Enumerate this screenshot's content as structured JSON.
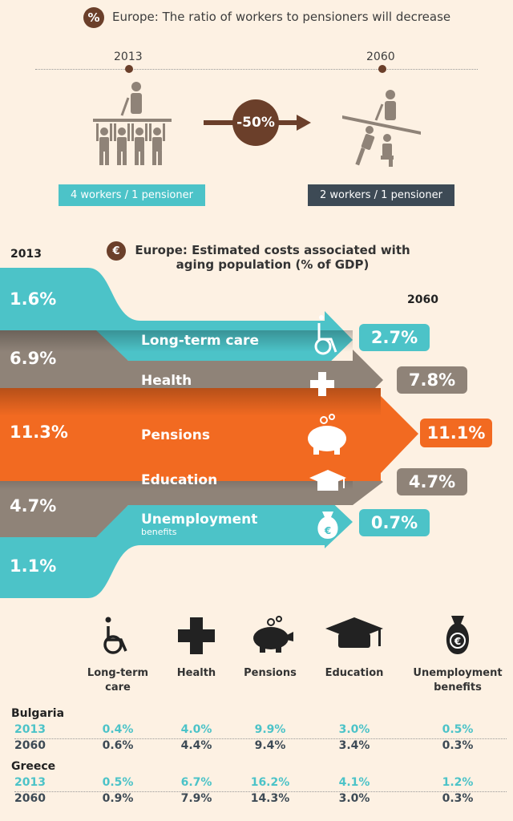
{
  "ratio_section": {
    "title": "Europe: The ratio of workers to pensioners will decrease",
    "year_from": "2013",
    "year_to": "2060",
    "change": "-50%",
    "from_label": "4 workers / 1 pensioner",
    "to_label": "2 workers / 1 pensioner"
  },
  "costs_section": {
    "year_left": "2013",
    "title_line1": "Europe: Estimated costs associated with",
    "title_line2": "aging population (% of GDP)",
    "year_right": "2060"
  },
  "chart_data": [
    {
      "type": "bar",
      "title": "Europe: Estimated costs associated with aging population (% of GDP)",
      "categories": [
        "Long-term care",
        "Health",
        "Pensions",
        "Education",
        "Unemployment benefits"
      ],
      "series": [
        {
          "name": "2013",
          "values": [
            1.6,
            6.9,
            11.3,
            4.7,
            1.1
          ],
          "labels": [
            "1.6%",
            "6.9%",
            "11.3%",
            "4.7%",
            "1.1%"
          ]
        },
        {
          "name": "2060",
          "values": [
            2.7,
            7.8,
            11.1,
            4.7,
            0.7
          ],
          "labels": [
            "2.7%",
            "7.8%",
            "11.1%",
            "4.7%",
            "0.7%"
          ]
        }
      ],
      "category_labels": {
        "long_term_care": "Long-term care",
        "health": "Health",
        "pensions": "Pensions",
        "education": "Education",
        "unemployment": "Unemployment",
        "unemployment_sub": "benefits"
      },
      "colors": {
        "teal": "#4cc3c8",
        "brown": "#8f8378",
        "orange": "#f26a21"
      }
    },
    {
      "type": "table",
      "columns": [
        "Long-term care",
        "Health",
        "Pensions",
        "Education",
        "Unemployment benefits"
      ],
      "column_labels": [
        [
          "Long-term",
          "care"
        ],
        [
          "Health"
        ],
        [
          "Pensions"
        ],
        [
          "Education"
        ],
        [
          "Unemployment",
          "benefits"
        ]
      ],
      "rows": [
        {
          "country": "Bulgaria",
          "year_a": "2013",
          "values_a": [
            "0.4%",
            "4.0%",
            "9.9%",
            "3.0%",
            "0.5%"
          ],
          "year_b": "2060",
          "values_b": [
            "0.6%",
            "4.4%",
            "9.4%",
            "3.4%",
            "0.3%"
          ]
        },
        {
          "country": "Greece",
          "year_a": "2013",
          "values_a": [
            "0.5%",
            "6.7%",
            "16.2%",
            "4.1%",
            "1.2%"
          ],
          "year_b": "2060",
          "values_b": [
            "0.9%",
            "7.9%",
            "14.3%",
            "3.0%",
            "0.3%"
          ]
        }
      ]
    }
  ],
  "icons": [
    "percent-icon",
    "euro-bag-icon",
    "wheelchair-icon",
    "cross-icon",
    "piggy-bank-icon",
    "graduation-cap-icon",
    "money-bag-icon",
    "pensioner-icon",
    "workers-icon"
  ],
  "colors": {
    "background": "#fdf1e3",
    "teal": "#4cc3c8",
    "dark": "#3d4a55",
    "brown": "#6b3f2a",
    "grey": "#8f8378",
    "orange": "#f26a21"
  }
}
